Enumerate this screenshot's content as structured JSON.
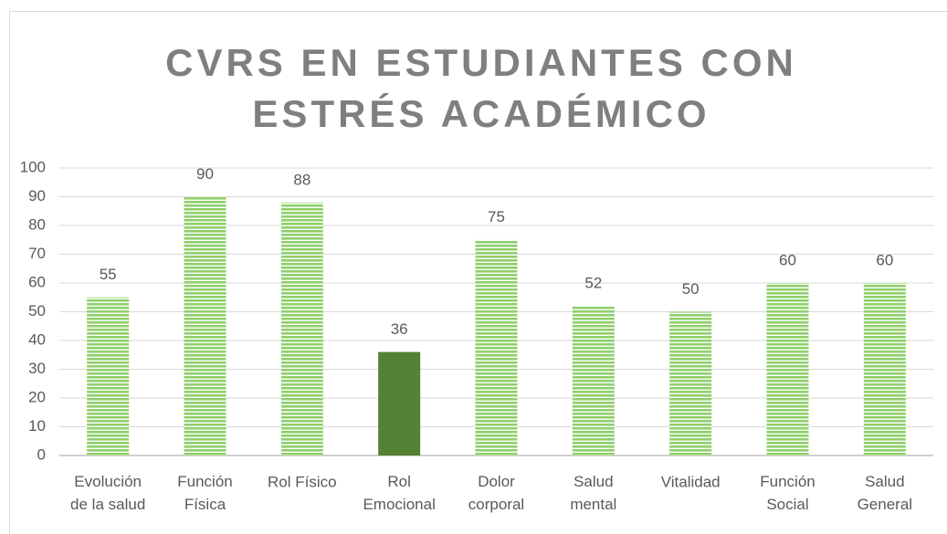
{
  "chart_data": {
    "type": "bar",
    "title": "CVRS EN ESTUDIANTES CON\nESTRÉS ACADÉMICO",
    "categories": [
      "Evolución\nde la salud",
      "Función\nFísica",
      "Rol Físico",
      "Rol\nEmocional",
      "Dolor\ncorporal",
      "Salud\nmental",
      "Vitalidad",
      "Función\nSocial",
      "Salud\nGeneral"
    ],
    "values": [
      55,
      90,
      88,
      36,
      75,
      52,
      50,
      60,
      60
    ],
    "colors": [
      "#8fcf6a",
      "#8fcf6a",
      "#8fcf6a",
      "#548235",
      "#8fcf6a",
      "#8fcf6a",
      "#8fcf6a",
      "#8fcf6a",
      "#8fcf6a"
    ],
    "ylim": [
      0,
      100
    ],
    "yticks": [
      0,
      10,
      20,
      30,
      40,
      50,
      60,
      70,
      80,
      90,
      100
    ],
    "grid": true
  }
}
